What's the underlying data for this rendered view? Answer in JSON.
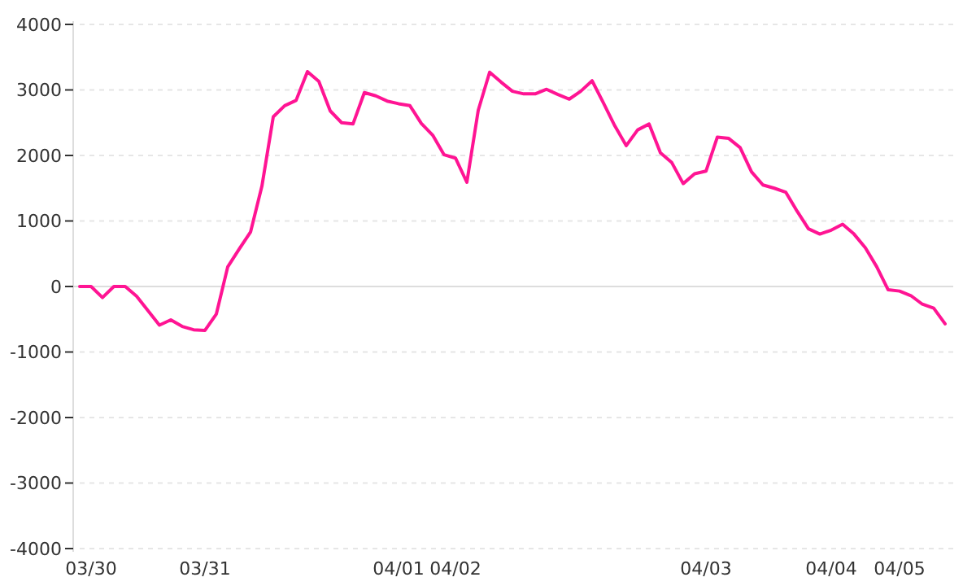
{
  "chart_data": {
    "type": "line",
    "categories": [
      null,
      "03/30",
      null,
      null,
      null,
      null,
      null,
      null,
      null,
      null,
      null,
      "03/31",
      null,
      null,
      null,
      null,
      null,
      null,
      null,
      null,
      null,
      null,
      null,
      null,
      null,
      null,
      null,
      null,
      "04/01",
      null,
      null,
      null,
      null,
      "04/02",
      null,
      null,
      null,
      null,
      null,
      null,
      null,
      null,
      null,
      null,
      null,
      null,
      null,
      null,
      null,
      null,
      null,
      null,
      null,
      null,
      null,
      "04/03",
      null,
      null,
      null,
      null,
      null,
      null,
      null,
      null,
      null,
      null,
      "04/04",
      null,
      null,
      null,
      null,
      null,
      "04/05",
      null,
      null,
      null,
      null
    ],
    "series": [
      {
        "color": "#ff1493",
        "values": [
          0,
          0,
          -170,
          0,
          0,
          -150,
          -370,
          -590,
          -510,
          -610,
          -660,
          -670,
          -420,
          300,
          570,
          830,
          1530,
          2590,
          2760,
          2840,
          3280,
          3130,
          2680,
          2500,
          2480,
          2960,
          2910,
          2830,
          2790,
          2760,
          2490,
          2310,
          2010,
          1960,
          1590,
          2690,
          3270,
          3120,
          2980,
          2940,
          2940,
          3010,
          2930,
          2860,
          2980,
          3140,
          2800,
          2450,
          2150,
          2390,
          2480,
          2040,
          1890,
          1570,
          1720,
          1760,
          2280,
          2260,
          2120,
          1750,
          1550,
          1500,
          1440,
          1150,
          880,
          800,
          860,
          950,
          800,
          590,
          300,
          -50,
          -70,
          -140,
          -270,
          -330,
          -570
        ]
      }
    ],
    "ylim": [
      -4000,
      4000
    ],
    "yticks": [
      -4000,
      -3000,
      -2000,
      -1000,
      0,
      1000,
      2000,
      3000,
      4000
    ],
    "grid": "y",
    "marker": "none",
    "line_style": "solid",
    "ref_lines": [
      {
        "axis": "y",
        "value": 0,
        "color": "#dddddd"
      }
    ]
  }
}
